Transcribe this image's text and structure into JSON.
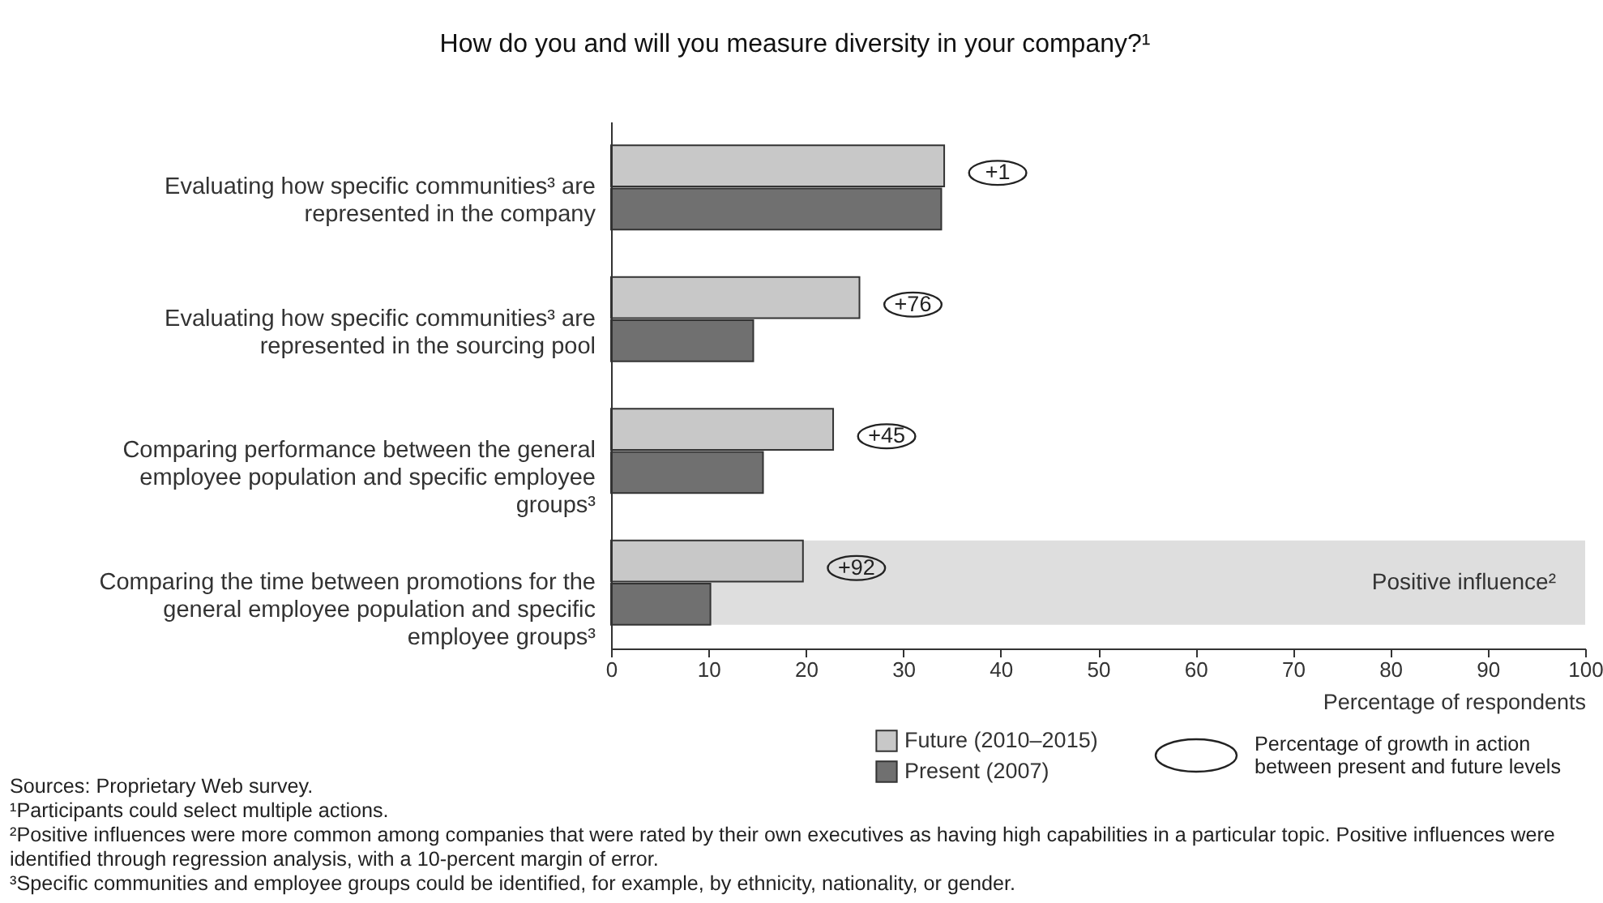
{
  "chart_data": {
    "type": "bar",
    "orientation": "horizontal",
    "title": "How do you and will you measure diversity in your company?¹",
    "xlabel": "Percentage of respondents",
    "categories": [
      "Evaluating how specific communities³ are represented in the company",
      "Evaluating how specific communities³ are represented in the sourcing pool",
      "Comparing performance between the general employee population and specific employee groups³",
      "Comparing the time between promotions for the general employee population and specific employee groups³"
    ],
    "series": [
      {
        "name": "Future (2010–2015)",
        "color": "#c8c8c8",
        "values": [
          34.2,
          25.5,
          22.8,
          19.7
        ]
      },
      {
        "name": "Present (2007)",
        "color": "#707070",
        "values": [
          33.9,
          14.6,
          15.6,
          10.2
        ]
      }
    ],
    "xlim": [
      0,
      100
    ],
    "xticks": [
      0,
      10,
      20,
      30,
      40,
      50,
      60,
      70,
      80,
      90,
      100
    ],
    "grid": false,
    "legend": "bottom",
    "bands": [
      {
        "axis": "y",
        "from": "Comparing the time between promotions for the general employee population and specific employee groups³",
        "to": "Comparing the time between promotions for the general employee population and specific employee groups³",
        "label": "Positive influence²",
        "color": "#dedede"
      }
    ],
    "annotations": [
      "+1",
      "+76",
      "+45",
      "+92",
      "Percentage of growth in action between present and future levels",
      "Sources: Proprietary Web survey.",
      "¹Participants could select multiple actions.",
      "²Positive influences were more common among companies that were rated by their own executives as having high capabilities in a particular topic. Positive influences were identified through regression analysis, with a 10-percent margin of error.",
      "³Specific communities and employee groups could be identified, for example, by ethnicity, nationality, or gender."
    ]
  }
}
